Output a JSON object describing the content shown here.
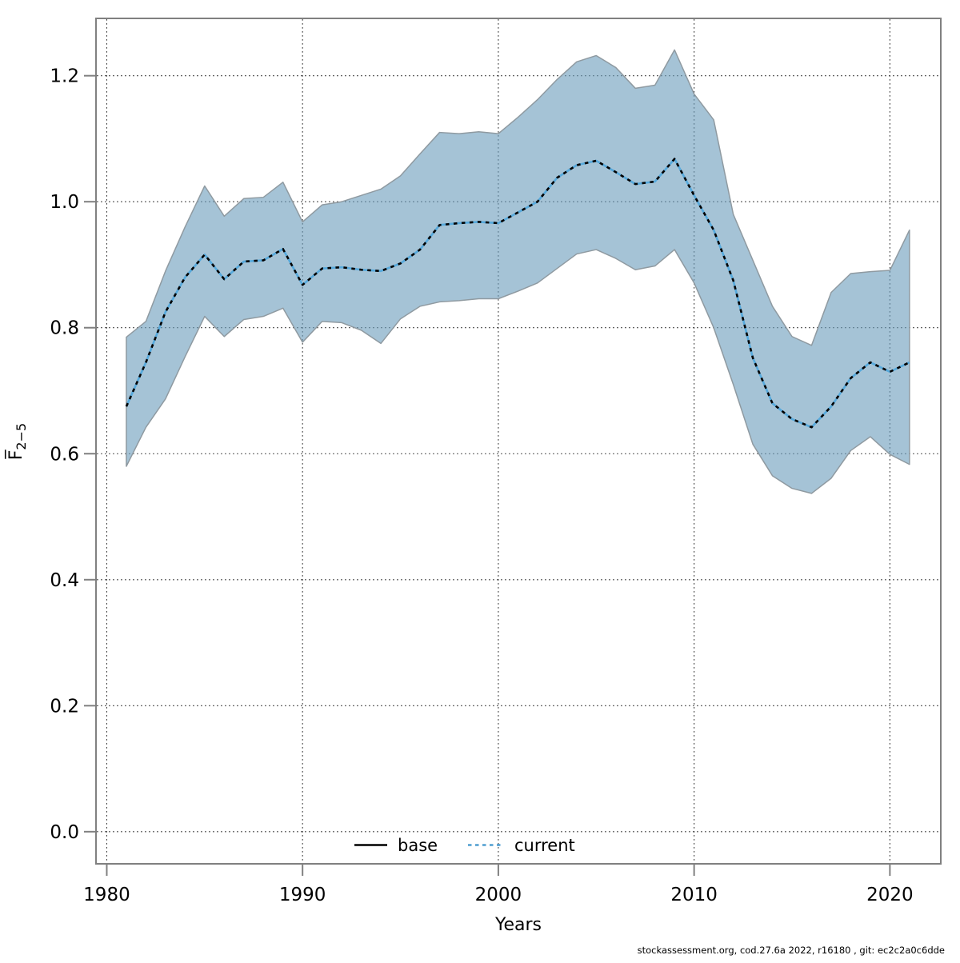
{
  "figure": {
    "xlabel": "Years",
    "ylabel_base": "F̅",
    "ylabel_sub": "2−5",
    "footer": "stockassessment.org, cod.27.6a  2022, r16180 , git: ec2c2a0c6dde"
  },
  "legend": {
    "items": [
      {
        "label": "base",
        "line": "solid",
        "color": "#000000"
      },
      {
        "label": "current",
        "line": "dotted",
        "color": "#4f9dd0"
      }
    ]
  },
  "chart_data": {
    "type": "line",
    "title": "",
    "xlabel": "Years",
    "ylabel": "Fbar(2-5)",
    "grid": true,
    "legend_position": "bottom-center-inside",
    "xlim": [
      1979.45,
      2022.6
    ],
    "ylim": [
      -0.051,
      1.291
    ],
    "x_ticks": [
      1980,
      1990,
      2000,
      2010,
      2020
    ],
    "y_ticks": [
      0.0,
      0.2,
      0.4,
      0.6,
      0.8,
      1.0,
      1.2
    ],
    "x": [
      1981,
      1982,
      1983,
      1984,
      1985,
      1986,
      1987,
      1988,
      1989,
      1990,
      1991,
      1992,
      1993,
      1994,
      1995,
      1996,
      1997,
      1998,
      1999,
      2000,
      2001,
      2002,
      2003,
      2004,
      2005,
      2006,
      2007,
      2008,
      2009,
      2010,
      2011,
      2012,
      2013,
      2014,
      2015,
      2016,
      2017,
      2018,
      2019,
      2020,
      2021
    ],
    "series": [
      {
        "name": "current",
        "style": "dotted-blue-over-black",
        "values": [
          0.675,
          0.745,
          0.825,
          0.88,
          0.916,
          0.877,
          0.905,
          0.907,
          0.925,
          0.868,
          0.894,
          0.896,
          0.892,
          0.89,
          0.902,
          0.924,
          0.963,
          0.966,
          0.968,
          0.966,
          0.983,
          1.0,
          1.038,
          1.058,
          1.065,
          1.047,
          1.028,
          1.032,
          1.068,
          1.01,
          0.955,
          0.875,
          0.752,
          0.68,
          0.655,
          0.642,
          0.675,
          0.72,
          0.745,
          0.73,
          0.745
        ]
      }
    ],
    "band": {
      "name": "current confidence interval",
      "upper": [
        0.785,
        0.81,
        0.89,
        0.96,
        1.025,
        0.977,
        1.005,
        1.007,
        1.031,
        0.968,
        0.995,
        1.0,
        1.01,
        1.02,
        1.041,
        1.076,
        1.11,
        1.108,
        1.111,
        1.108,
        1.134,
        1.162,
        1.194,
        1.222,
        1.232,
        1.213,
        1.18,
        1.185,
        1.241,
        1.171,
        1.13,
        0.98,
        0.907,
        0.834,
        0.786,
        0.772,
        0.856,
        0.886,
        0.889,
        0.891,
        0.955
      ],
      "lower": [
        0.58,
        0.642,
        0.687,
        0.754,
        0.818,
        0.786,
        0.813,
        0.818,
        0.831,
        0.777,
        0.81,
        0.808,
        0.796,
        0.775,
        0.814,
        0.834,
        0.841,
        0.843,
        0.846,
        0.846,
        0.858,
        0.871,
        0.894,
        0.917,
        0.924,
        0.91,
        0.892,
        0.898,
        0.924,
        0.871,
        0.8,
        0.71,
        0.615,
        0.565,
        0.545,
        0.537,
        0.561,
        0.605,
        0.627,
        0.599,
        0.583
      ]
    },
    "colors": {
      "band_fill": "#699bbb",
      "band_fill_opacity": 0.6,
      "band_edge": "#8f9aa1",
      "line_blue": "#56a9dc",
      "line_black": "#000000",
      "axis": "#808080",
      "gridline": "#3f3f3f"
    }
  }
}
